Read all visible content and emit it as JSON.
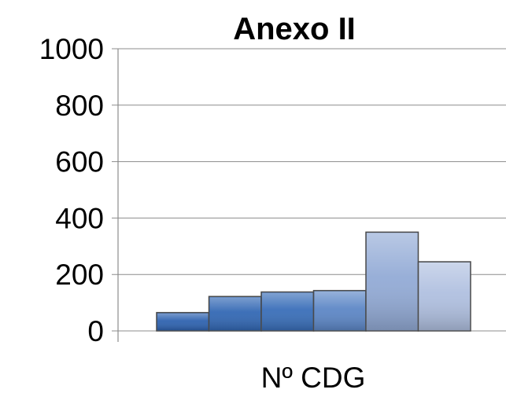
{
  "chart_data": {
    "type": "bar",
    "title": "Anexo II",
    "categories": [
      "Nº CDG"
    ],
    "series": [
      {
        "values": [
          65
        ]
      },
      {
        "values": [
          122
        ]
      },
      {
        "values": [
          138
        ]
      },
      {
        "values": [
          143
        ]
      },
      {
        "values": [
          350
        ]
      },
      {
        "values": [
          245
        ]
      }
    ],
    "colors": [
      "#2f63b0",
      "#3368b4",
      "#3a6fb9",
      "#5d87c6",
      "#93abd6",
      "#b0c0e0"
    ],
    "ylim": [
      0,
      1000
    ],
    "yticks": [
      "0",
      "200",
      "400",
      "600",
      "800",
      "1000"
    ],
    "xlabel": "",
    "ylabel": "",
    "grid": true,
    "legend": "none"
  }
}
